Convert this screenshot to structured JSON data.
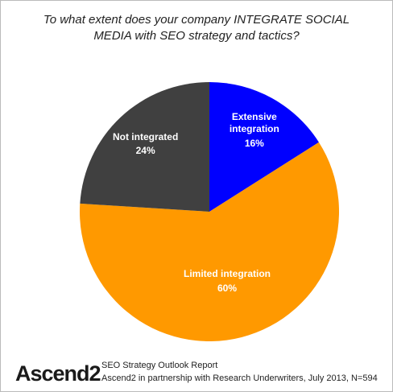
{
  "chart_data": {
    "type": "pie",
    "title": "To what extent does your company INTEGRATE SOCIAL MEDIA with SEO strategy and tactics?",
    "categories": [
      "Extensive integration",
      "Limited integration",
      "Not integrated"
    ],
    "values": [
      16,
      60,
      24
    ],
    "value_labels": [
      "16%",
      "60%",
      "24%"
    ],
    "colors": [
      "#0000ff",
      "#ff9900",
      "#404040"
    ]
  },
  "footer": {
    "logo": "Ascend2",
    "report": "SEO Strategy Outlook Report",
    "source": "Ascend2 in partnership with Research Underwriters, July 2013, N=594"
  }
}
